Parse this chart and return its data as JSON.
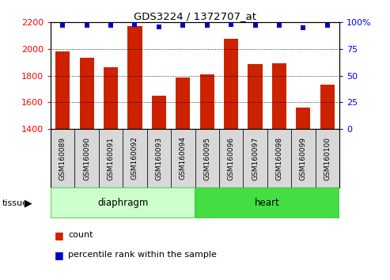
{
  "title": "GDS3224 / 1372707_at",
  "categories": [
    "GSM160089",
    "GSM160090",
    "GSM160091",
    "GSM160092",
    "GSM160093",
    "GSM160094",
    "GSM160095",
    "GSM160096",
    "GSM160097",
    "GSM160098",
    "GSM160099",
    "GSM160100"
  ],
  "bar_values": [
    1980,
    1935,
    1860,
    2170,
    1650,
    1785,
    1810,
    2075,
    1885,
    1890,
    1560,
    1730
  ],
  "percentile_values": [
    97,
    97,
    97,
    98,
    96,
    97,
    97,
    98,
    97,
    97,
    95,
    97
  ],
  "bar_color": "#cc2200",
  "dot_color": "#0000cc",
  "ylim_left": [
    1400,
    2200
  ],
  "ylim_right": [
    0,
    100
  ],
  "yticks_left": [
    1400,
    1600,
    1800,
    2000,
    2200
  ],
  "yticks_right": [
    0,
    25,
    50,
    75,
    100
  ],
  "ytick_right_labels": [
    "0",
    "25",
    "50",
    "75",
    "100%"
  ],
  "tissue_groups": [
    {
      "label": "diaphragm",
      "start": 0,
      "end": 6,
      "color": "#ccffcc",
      "edge_color": "#44cc44"
    },
    {
      "label": "heart",
      "start": 6,
      "end": 12,
      "color": "#44dd44",
      "edge_color": "#44cc44"
    }
  ],
  "legend_items": [
    {
      "label": "count",
      "color": "#cc2200"
    },
    {
      "label": "percentile rank within the sample",
      "color": "#0000cc"
    }
  ],
  "tissue_label": "tissue",
  "background_color": "#ffffff",
  "plot_bg_color": "#ffffff",
  "label_bg_color": "#d8d8d8",
  "grid_color": "#000000",
  "bar_width": 0.6
}
